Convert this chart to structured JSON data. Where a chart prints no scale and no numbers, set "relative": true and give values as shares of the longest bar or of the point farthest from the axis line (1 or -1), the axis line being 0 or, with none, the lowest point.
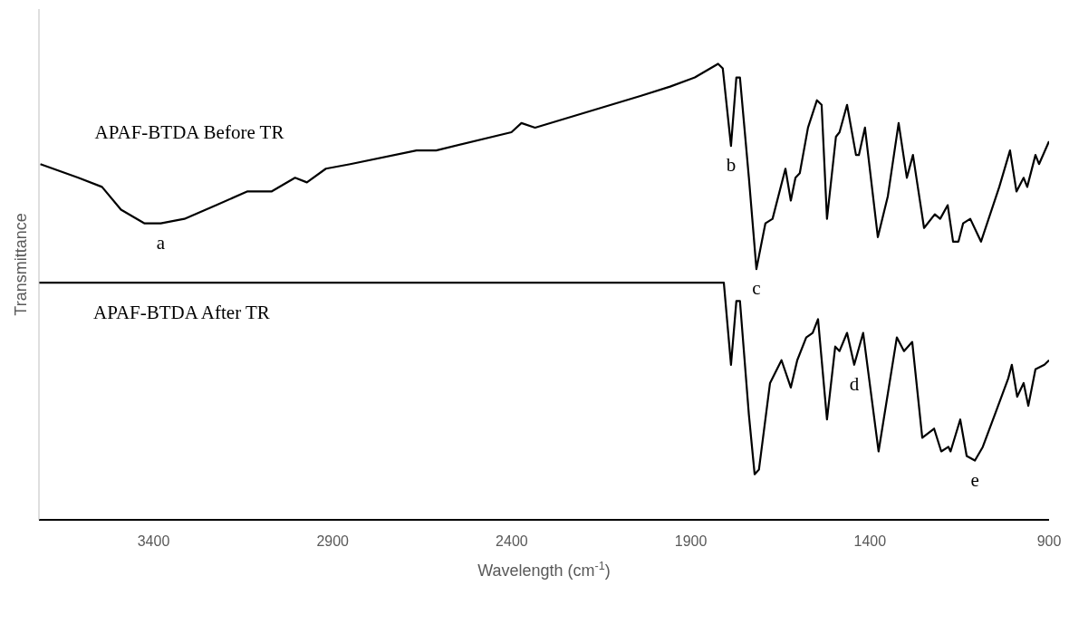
{
  "chart_data": {
    "type": "line",
    "relative": true,
    "xlabel": "Wavelength (cm$^{-1}$)",
    "ylabel": "Transmittance",
    "xlim": [
      3720,
      900
    ],
    "xticks": [
      3400,
      2900,
      2400,
      1900,
      1400,
      900
    ],
    "grid": false,
    "marker": "none",
    "line_style": "solid",
    "series": [
      {
        "name": "APAF-BTDA Before TR",
        "color": "#000000",
        "x": [
          3716,
          3610,
          3544,
          3491,
          3425,
          3380,
          3314,
          3225,
          3139,
          3071,
          3005,
          2972,
          2919,
          2851,
          2666,
          2611,
          2401,
          2373,
          2335,
          2039,
          1958,
          1889,
          1824,
          1811,
          1788,
          1773,
          1763,
          1738,
          1717,
          1692,
          1672,
          1636,
          1621,
          1608,
          1596,
          1573,
          1548,
          1535,
          1520,
          1495,
          1485,
          1464,
          1439,
          1431,
          1414,
          1378,
          1350,
          1320,
          1297,
          1280,
          1249,
          1219,
          1204,
          1183,
          1168,
          1153,
          1140,
          1120,
          1102,
          1090,
          1039,
          1009,
          991,
          971,
          961,
          938,
          928,
          900
        ],
        "values": [
          0.78,
          0.75,
          0.73,
          0.68,
          0.65,
          0.65,
          0.66,
          0.69,
          0.72,
          0.72,
          0.75,
          0.74,
          0.77,
          0.78,
          0.81,
          0.81,
          0.85,
          0.87,
          0.86,
          0.93,
          0.95,
          0.97,
          1,
          0.99,
          0.82,
          0.97,
          0.97,
          0.75,
          0.55,
          0.65,
          0.66,
          0.77,
          0.7,
          0.75,
          0.76,
          0.86,
          0.92,
          0.91,
          0.66,
          0.84,
          0.85,
          0.91,
          0.8,
          0.8,
          0.86,
          0.62,
          0.71,
          0.87,
          0.75,
          0.8,
          0.64,
          0.67,
          0.66,
          0.69,
          0.61,
          0.61,
          0.65,
          0.66,
          0.63,
          0.61,
          0.73,
          0.81,
          0.72,
          0.75,
          0.73,
          0.8,
          0.78,
          0.83
        ]
      },
      {
        "name": "APAF-BTDA After TR",
        "color": "#000000",
        "x": [
          3720,
          1808,
          1788,
          1773,
          1763,
          1738,
          1722,
          1710,
          1679,
          1647,
          1621,
          1603,
          1578,
          1560,
          1545,
          1520,
          1497,
          1485,
          1464,
          1444,
          1419,
          1376,
          1325,
          1305,
          1282,
          1254,
          1221,
          1201,
          1181,
          1175,
          1148,
          1130,
          1107,
          1085,
          1047,
          1014,
          1004,
          989,
          971,
          958,
          938,
          913,
          900
        ],
        "values": [
          0.52,
          0.52,
          0.34,
          0.48,
          0.48,
          0.23,
          0.1,
          0.11,
          0.3,
          0.35,
          0.29,
          0.35,
          0.4,
          0.41,
          0.44,
          0.22,
          0.38,
          0.37,
          0.41,
          0.34,
          0.41,
          0.15,
          0.4,
          0.37,
          0.39,
          0.18,
          0.2,
          0.15,
          0.16,
          0.15,
          0.22,
          0.14,
          0.13,
          0.16,
          0.24,
          0.31,
          0.34,
          0.27,
          0.3,
          0.25,
          0.33,
          0.34,
          0.35
        ]
      }
    ],
    "annotations": [
      {
        "text": "a",
        "x": 3380,
        "y": 0.65
      },
      {
        "text": "b",
        "x": 1788,
        "y": 0.82
      },
      {
        "text": "c",
        "x": 1717,
        "y": 0.55
      },
      {
        "text": "d",
        "x": 1444,
        "y": 0.34
      },
      {
        "text": "e",
        "x": 1107,
        "y": 0.13
      }
    ]
  }
}
